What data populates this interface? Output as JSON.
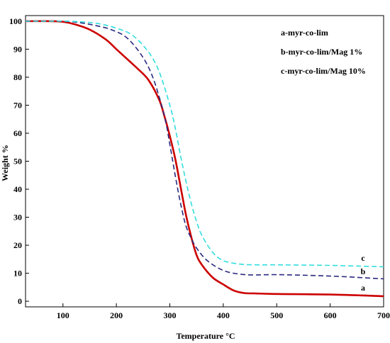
{
  "chart_data": {
    "type": "line",
    "xlabel": "Temperature °C",
    "ylabel": "Weight %",
    "xlim": [
      30,
      700
    ],
    "ylim": [
      -2,
      102
    ],
    "xticks": [
      100,
      200,
      300,
      400,
      500,
      600,
      700
    ],
    "yticks": [
      0,
      10,
      20,
      30,
      40,
      50,
      60,
      70,
      80,
      90,
      100
    ],
    "grid": false,
    "legend_entries": [
      "a-myr-co-lim",
      "b-myr-co-lim/Mag 1%",
      "c-myr-co-lim/Mag 10%"
    ],
    "series": [
      {
        "label": "a",
        "color": "#cc0000",
        "dash": "solid",
        "x": [
          30,
          80,
          100,
          120,
          150,
          180,
          200,
          220,
          240,
          260,
          280,
          290,
          300,
          310,
          320,
          330,
          340,
          350,
          360,
          380,
          400,
          420,
          440,
          460,
          500,
          600,
          700
        ],
        "y": [
          100,
          100,
          99.8,
          99,
          97,
          93.5,
          90,
          86.5,
          83,
          79,
          72,
          66,
          59,
          51,
          41,
          31,
          23,
          16.5,
          13,
          8.5,
          6,
          3.8,
          2.9,
          2.8,
          2.6,
          2.4,
          1.8
        ]
      },
      {
        "label": "b",
        "color": "#2a2a80",
        "dash": "dashed",
        "x": [
          30,
          100,
          130,
          160,
          190,
          220,
          250,
          270,
          290,
          300,
          310,
          320,
          330,
          340,
          350,
          370,
          400,
          430,
          460,
          500,
          600,
          700
        ],
        "y": [
          100,
          100,
          99.5,
          98.5,
          97,
          94,
          87,
          79,
          66,
          56,
          45,
          35,
          27,
          22.5,
          19,
          14.5,
          11,
          9.7,
          9.4,
          9.5,
          9.0,
          8.0
        ]
      },
      {
        "label": "c",
        "color": "#33dddd",
        "dash": "dashed",
        "x": [
          30,
          100,
          140,
          170,
          200,
          230,
          260,
          280,
          300,
          310,
          320,
          330,
          340,
          350,
          360,
          380,
          400,
          430,
          460,
          500,
          600,
          700
        ],
        "y": [
          100,
          100,
          99.7,
          99,
          97.5,
          95,
          89,
          82,
          70,
          62,
          52,
          43,
          35,
          28.5,
          23.5,
          17.5,
          14.5,
          13.3,
          13,
          13,
          12.8,
          12.3
        ]
      }
    ]
  }
}
